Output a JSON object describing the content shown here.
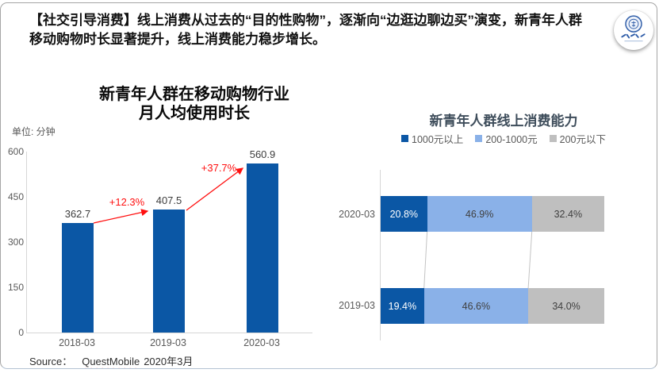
{
  "headline": "【社交引导消费】线上消费从过去的“目的性购物”，逐渐向“边逛边聊边买”演变，新青年人群移动购物时长显著提升，线上消费能力稳步增长。",
  "logo": {
    "icon": "university-seal"
  },
  "chart_data": [
    {
      "type": "bar",
      "title": "新青年人群在移动购物行业 月人均使用时长",
      "title_lines": [
        "新青年人群在移动购物行业",
        "月人均使用时长"
      ],
      "unit_label": "单位: 分钟",
      "categories": [
        "2018-03",
        "2019-03",
        "2020-03"
      ],
      "values": [
        362.7,
        407.5,
        560.9
      ],
      "growth_labels": [
        "+12.3%",
        "+37.7%"
      ],
      "ylim": [
        0,
        600
      ],
      "yticks": [
        600,
        450,
        300,
        150,
        0
      ],
      "ylabel": "分钟",
      "grid": false,
      "bar_color": "#0b57a5",
      "arrow_color": "#ff0f0f"
    },
    {
      "type": "stacked-bar-horizontal",
      "title": "新青年人群线上消费能力",
      "categories": [
        "2020-03",
        "2019-03"
      ],
      "legend_position": "top",
      "series": [
        {
          "name": "1000元以上",
          "color": "#0b57a5",
          "values": [
            20.8,
            19.4
          ]
        },
        {
          "name": "200-1000元",
          "color": "#8ab1e8",
          "values": [
            46.9,
            46.6
          ]
        },
        {
          "name": "200元以下",
          "color": "#bfbfbf",
          "values": [
            32.4,
            34.0
          ]
        }
      ],
      "value_labels": [
        [
          "20.8%",
          "46.9%",
          "32.4%"
        ],
        [
          "19.4%",
          "46.6%",
          "34.0%"
        ]
      ]
    }
  ],
  "source": {
    "label": "Source：",
    "name": "QuestMobile",
    "date": "2020年3月"
  }
}
